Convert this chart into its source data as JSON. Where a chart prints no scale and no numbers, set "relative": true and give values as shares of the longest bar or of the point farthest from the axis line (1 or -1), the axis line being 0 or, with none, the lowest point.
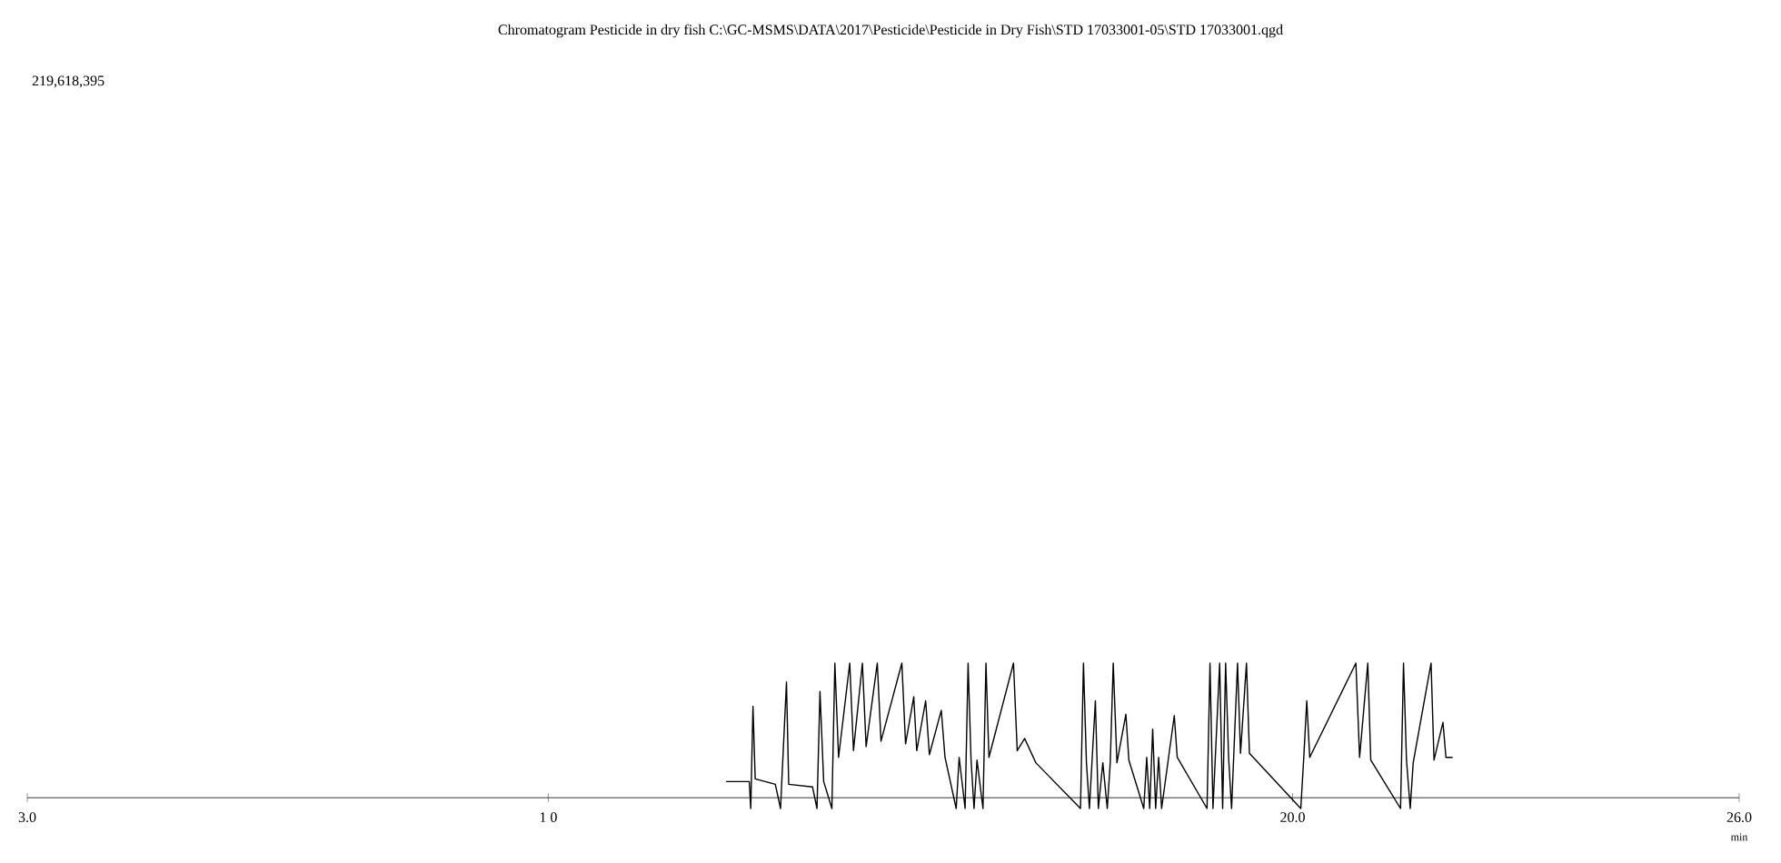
{
  "chart_data": {
    "type": "line",
    "title": "Chromatogram Pesticide in dry fish C:\\GC-MSMS\\DATA\\2017\\Pesticide\\Pesticide in Dry Fish\\STD 17033001-05\\STD 17033001.qgd",
    "xlabel": "min",
    "annotations": [
      "219,618,395"
    ],
    "relative": true,
    "xlim": [
      3,
      26
    ],
    "xticks": [
      {
        "value": 3,
        "label": "3.0"
      },
      {
        "value": 10,
        "label": "1 0"
      },
      {
        "value": 20,
        "label": "20.0"
      },
      {
        "value": 26,
        "label": "26.0"
      }
    ],
    "x": [
      12.39,
      12.7,
      12.72,
      12.75,
      12.78,
      13.05,
      13.12,
      13.2,
      13.23,
      13.55,
      13.61,
      13.65,
      13.7,
      13.81,
      13.85,
      13.9,
      14.05,
      14.1,
      14.22,
      14.27,
      14.42,
      14.47,
      14.75,
      14.8,
      14.91,
      14.95,
      15.07,
      15.12,
      15.28,
      15.33,
      15.48,
      15.52,
      15.6,
      15.64,
      15.68,
      15.72,
      15.76,
      15.84,
      15.88,
      15.92,
      16.25,
      16.3,
      16.4,
      16.55,
      17.15,
      17.19,
      17.23,
      17.27,
      17.35,
      17.39,
      17.45,
      17.51,
      17.55,
      17.59,
      17.64,
      17.76,
      17.8,
      18.0,
      18.04,
      18.08,
      18.12,
      18.16,
      18.2,
      18.24,
      18.41,
      18.45,
      18.85,
      18.89,
      18.93,
      19.02,
      19.06,
      19.1,
      19.14,
      19.18,
      19.26,
      19.3,
      19.38,
      19.42,
      20.11,
      20.15,
      20.19,
      20.23,
      20.85,
      20.9,
      21.01,
      21.05,
      21.45,
      21.49,
      21.53,
      21.58,
      21.62,
      21.86,
      21.9,
      22.02,
      22.06,
      22.15
    ],
    "series": [
      {
        "color": "#000000",
        "values": [
          0.12,
          0.12,
          -0.08,
          0.68,
          0.14,
          0.1,
          -0.08,
          0.86,
          0.1,
          0.08,
          -0.08,
          0.79,
          0.12,
          -0.08,
          1,
          0.3,
          1,
          0.35,
          1,
          0.38,
          1,
          0.42,
          1,
          0.4,
          0.75,
          0.35,
          0.72,
          0.32,
          0.65,
          0.3,
          -0.08,
          0.3,
          -0.08,
          1,
          0.28,
          -0.08,
          0.28,
          -0.08,
          1,
          0.3,
          1,
          0.35,
          0.44,
          0.26,
          -0.08,
          1,
          0.26,
          -0.08,
          0.72,
          -0.08,
          0.26,
          -0.08,
          0.26,
          1,
          0.26,
          0.62,
          0.28,
          -0.08,
          0.3,
          -0.08,
          0.51,
          -0.08,
          0.3,
          -0.08,
          0.61,
          0.3,
          -0.08,
          1,
          -0.08,
          1,
          -0.08,
          1,
          0.3,
          -0.08,
          1,
          0.33,
          1,
          0.33,
          -0.08,
          0.3,
          0.72,
          0.3,
          1,
          0.3,
          1,
          0.28,
          -0.08,
          1,
          0.28,
          -0.08,
          0.26,
          1,
          0.28,
          0.56,
          0.3,
          0.3
        ]
      }
    ]
  }
}
